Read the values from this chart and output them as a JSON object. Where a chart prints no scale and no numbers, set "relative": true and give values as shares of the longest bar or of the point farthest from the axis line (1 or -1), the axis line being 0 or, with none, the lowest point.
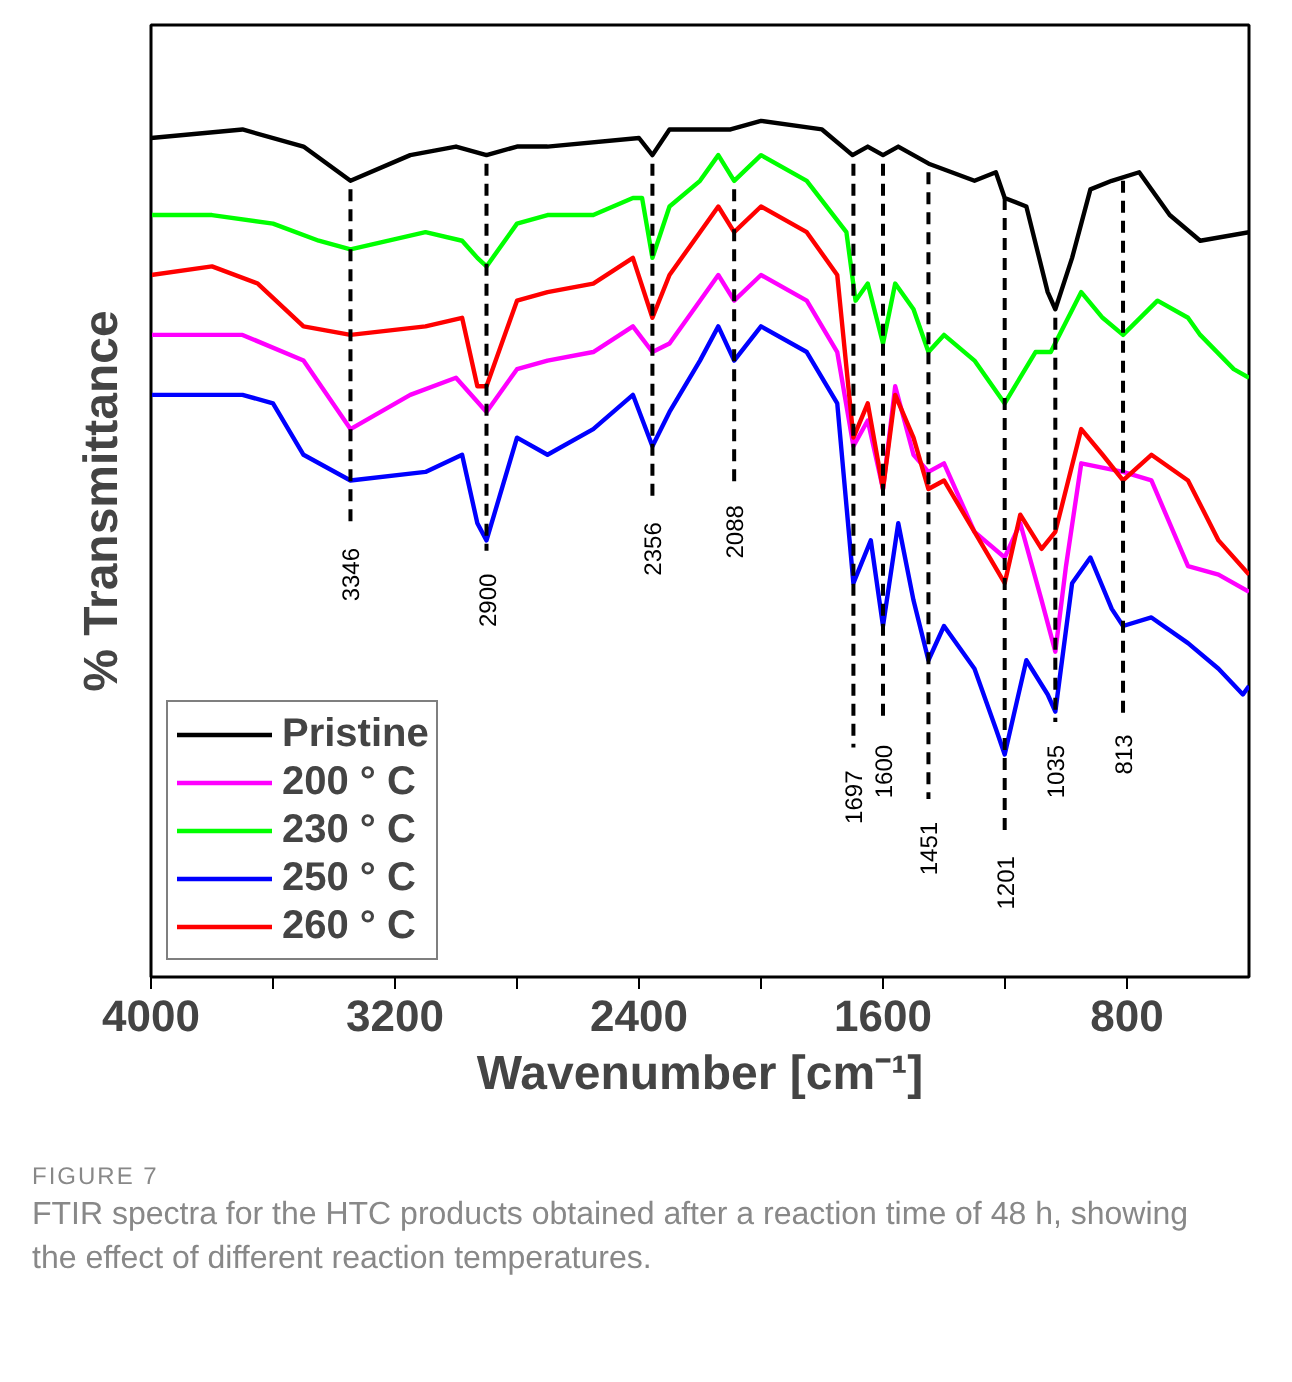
{
  "chart_data": {
    "type": "line",
    "relative": true,
    "xlabel": "Wavenumber [cm⁻¹]",
    "ylabel": "% Transmittance",
    "xlim": [
      4000,
      400
    ],
    "xticks": [
      4000,
      {
        "value": 3600,
        "label": null
      },
      3200,
      {
        "value": 2800,
        "label": null
      },
      2400,
      {
        "value": 2000,
        "label": null
      },
      1600,
      {
        "value": 1200,
        "label": null
      },
      800
    ],
    "grid": false,
    "legend": "bottom left",
    "line_style": "solid",
    "series": [
      {
        "name": "Pristine",
        "color": "#000000",
        "x": [
          4000,
          3700,
          3500,
          3346,
          3150,
          3000,
          2900,
          2800,
          2700,
          2400,
          2356,
          2300,
          2100,
          2000,
          1800,
          1700,
          1650,
          1600,
          1550,
          1450,
          1300,
          1230,
          1201,
          1130,
          1060,
          1035,
          980,
          920,
          850,
          760,
          660,
          560,
          400
        ],
        "values": [
          0.98,
          0.99,
          0.97,
          0.93,
          0.96,
          0.97,
          0.96,
          0.97,
          0.97,
          0.98,
          0.96,
          0.99,
          0.99,
          1.0,
          0.99,
          0.96,
          0.97,
          0.96,
          0.97,
          0.95,
          0.93,
          0.94,
          0.91,
          0.9,
          0.8,
          0.78,
          0.84,
          0.92,
          0.93,
          0.94,
          0.89,
          0.86,
          0.87
        ]
      },
      {
        "name": "200 ° C",
        "color": "#ff00ff",
        "x": [
          4000,
          3700,
          3500,
          3346,
          3150,
          3000,
          2900,
          2800,
          2700,
          2550,
          2420,
          2356,
          2300,
          2200,
          2140,
          2088,
          2000,
          1850,
          1750,
          1697,
          1650,
          1600,
          1560,
          1500,
          1451,
          1400,
          1300,
          1201,
          1150,
          1080,
          1035,
          1000,
          950,
          813,
          720,
          600,
          500,
          400
        ],
        "values": [
          0.75,
          0.75,
          0.72,
          0.64,
          0.68,
          0.7,
          0.66,
          0.71,
          0.72,
          0.73,
          0.76,
          0.73,
          0.74,
          0.79,
          0.82,
          0.79,
          0.82,
          0.79,
          0.73,
          0.62,
          0.65,
          0.57,
          0.69,
          0.61,
          0.59,
          0.6,
          0.52,
          0.49,
          0.53,
          0.44,
          0.38,
          0.48,
          0.6,
          0.59,
          0.58,
          0.48,
          0.47,
          0.45
        ]
      },
      {
        "name": "230 ° C",
        "color": "#00ff00",
        "x": [
          4000,
          3800,
          3600,
          3450,
          3346,
          3100,
          2980,
          2930,
          2900,
          2800,
          2700,
          2550,
          2420,
          2390,
          2356,
          2300,
          2200,
          2140,
          2088,
          2000,
          1850,
          1720,
          1690,
          1650,
          1600,
          1560,
          1500,
          1451,
          1400,
          1300,
          1201,
          1100,
          1050,
          950,
          880,
          813,
          700,
          600,
          560,
          450,
          400
        ],
        "values": [
          0.89,
          0.89,
          0.88,
          0.86,
          0.85,
          0.87,
          0.86,
          0.84,
          0.83,
          0.88,
          0.89,
          0.89,
          0.91,
          0.91,
          0.84,
          0.9,
          0.93,
          0.96,
          0.93,
          0.96,
          0.93,
          0.87,
          0.79,
          0.81,
          0.74,
          0.81,
          0.78,
          0.73,
          0.75,
          0.72,
          0.67,
          0.73,
          0.73,
          0.8,
          0.77,
          0.75,
          0.79,
          0.77,
          0.75,
          0.71,
          0.7
        ]
      },
      {
        "name": "250 ° C",
        "color": "#0000ff",
        "x": [
          4000,
          3700,
          3600,
          3500,
          3346,
          3100,
          2980,
          2930,
          2900,
          2800,
          2700,
          2550,
          2420,
          2356,
          2300,
          2200,
          2140,
          2088,
          2000,
          1850,
          1750,
          1697,
          1640,
          1600,
          1550,
          1500,
          1451,
          1400,
          1300,
          1230,
          1201,
          1130,
          1060,
          1035,
          980,
          920,
          850,
          813,
          720,
          600,
          500,
          420,
          400
        ],
        "values": [
          0.68,
          0.68,
          0.67,
          0.61,
          0.58,
          0.59,
          0.61,
          0.53,
          0.51,
          0.63,
          0.61,
          0.64,
          0.68,
          0.62,
          0.66,
          0.72,
          0.76,
          0.72,
          0.76,
          0.73,
          0.67,
          0.46,
          0.51,
          0.41,
          0.53,
          0.44,
          0.37,
          0.41,
          0.36,
          0.29,
          0.26,
          0.37,
          0.33,
          0.31,
          0.46,
          0.49,
          0.43,
          0.41,
          0.42,
          0.39,
          0.36,
          0.33,
          0.34
        ]
      },
      {
        "name": "260 ° C",
        "color": "#ff0000",
        "x": [
          4000,
          3800,
          3650,
          3500,
          3346,
          3100,
          2980,
          2930,
          2900,
          2800,
          2700,
          2550,
          2420,
          2356,
          2300,
          2200,
          2140,
          2088,
          2000,
          1850,
          1750,
          1697,
          1650,
          1600,
          1560,
          1500,
          1451,
          1400,
          1300,
          1201,
          1150,
          1080,
          1035,
          950,
          880,
          813,
          720,
          600,
          500,
          400
        ],
        "values": [
          0.82,
          0.83,
          0.81,
          0.76,
          0.75,
          0.76,
          0.77,
          0.69,
          0.69,
          0.79,
          0.8,
          0.81,
          0.84,
          0.77,
          0.82,
          0.87,
          0.9,
          0.87,
          0.9,
          0.87,
          0.82,
          0.63,
          0.67,
          0.57,
          0.68,
          0.63,
          0.57,
          0.58,
          0.52,
          0.46,
          0.54,
          0.5,
          0.52,
          0.64,
          0.61,
          0.58,
          0.61,
          0.58,
          0.51,
          0.47
        ]
      }
    ],
    "ref_lines": [
      {
        "axis": "x",
        "value": 3346,
        "label": "3346",
        "color": "#000000",
        "line_style": "dashed"
      },
      {
        "axis": "x",
        "value": 2900,
        "label": "2900",
        "color": "#000000",
        "line_style": "dashed"
      },
      {
        "axis": "x",
        "value": 2356,
        "label": "2356",
        "color": "#000000",
        "line_style": "dashed"
      },
      {
        "axis": "x",
        "value": 2088,
        "label": "2088",
        "color": "#000000",
        "line_style": "dashed"
      },
      {
        "axis": "x",
        "value": 1697,
        "label": "1697",
        "color": "#000000",
        "line_style": "dashed"
      },
      {
        "axis": "x",
        "value": 1600,
        "label": "1600",
        "color": "#000000",
        "line_style": "dashed"
      },
      {
        "axis": "x",
        "value": 1451,
        "label": "1451",
        "color": "#000000",
        "line_style": "dashed"
      },
      {
        "axis": "x",
        "value": 1201,
        "label": "1201",
        "color": "#000000",
        "line_style": "dashed"
      },
      {
        "axis": "x",
        "value": 1035,
        "label": "1035",
        "color": "#000000",
        "line_style": "dashed"
      },
      {
        "axis": "x",
        "value": 813,
        "label": "813",
        "color": "#000000",
        "line_style": "dashed"
      }
    ],
    "annotations": [
      "FIGURE 7",
      "FTIR spectra for the HTC products obtained after a reaction time of 48 h, showing the effect of different reaction temperatures."
    ]
  }
}
